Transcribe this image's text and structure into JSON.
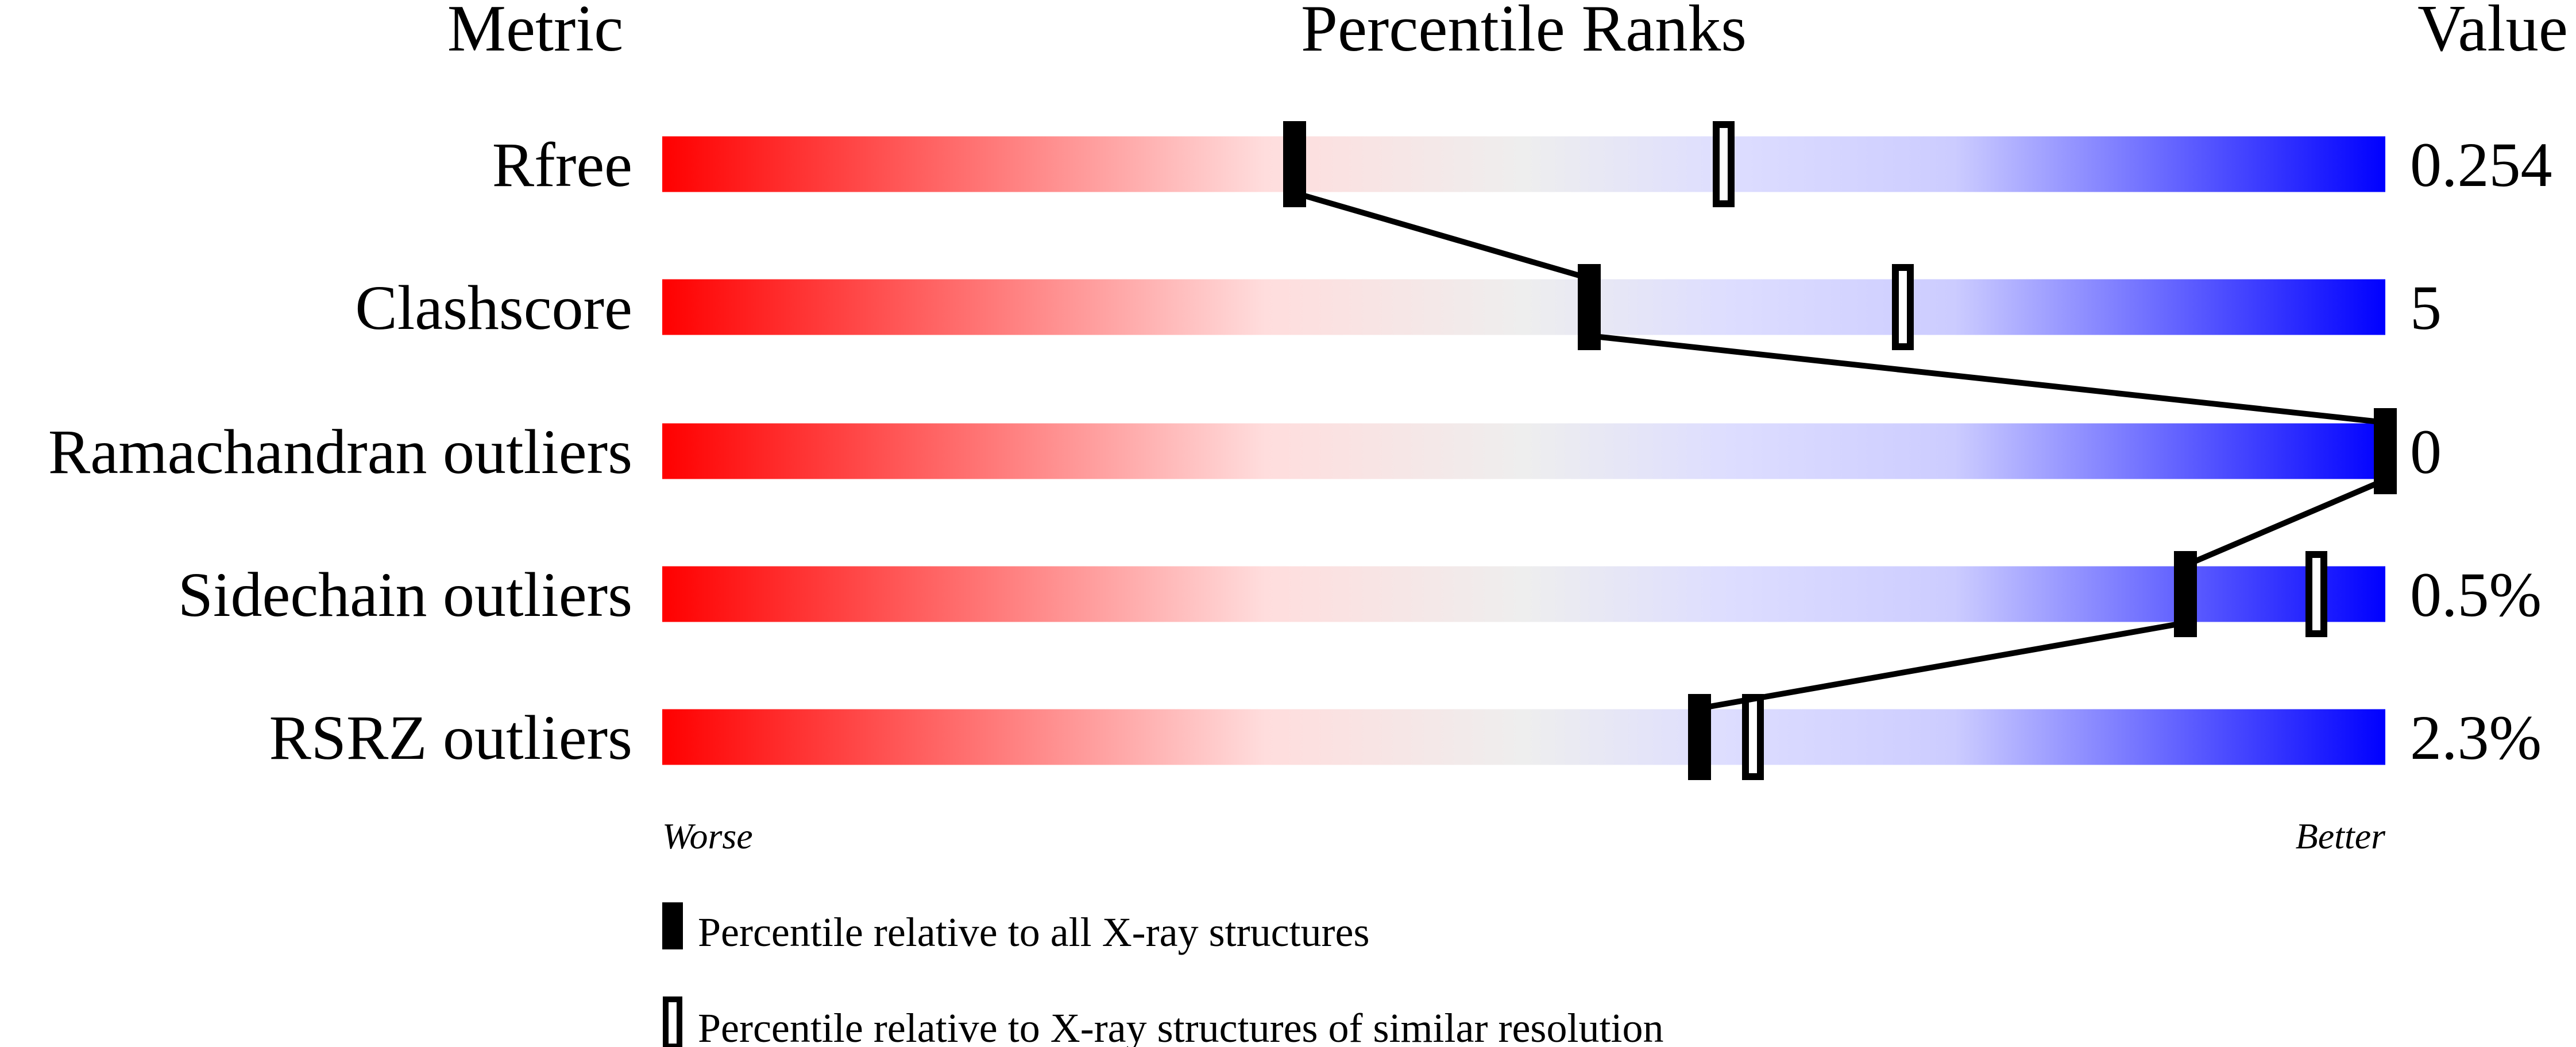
{
  "headers": {
    "metric": "Metric",
    "percentile": "Percentile Ranks",
    "value": "Value"
  },
  "axis": {
    "worse": "Worse",
    "better": "Better"
  },
  "legend": {
    "all": "Percentile relative to all X-ray structures",
    "similar": "Percentile relative to X-ray structures of similar resolution"
  },
  "colors": {
    "worst": "#ff0000",
    "mid": "#eeeeee",
    "best": "#0000ff",
    "marker": "#000000"
  },
  "chart_data": {
    "type": "bar",
    "xlim": [
      0,
      100
    ],
    "categories": [
      "Rfree",
      "Clashscore",
      "Ramachandran outliers",
      "Sidechain outliers",
      "RSRZ outliers"
    ],
    "values_text": [
      "0.254",
      "5",
      "0",
      "0.5%",
      "2.3%"
    ],
    "series": [
      {
        "name": "Percentile relative to all X-ray structures",
        "values": [
          36.7,
          53.8,
          100,
          88.4,
          60.2
        ]
      },
      {
        "name": "Percentile relative to X-ray structures of similar resolution",
        "values": [
          61.6,
          72.0,
          null,
          96.0,
          63.3
        ]
      }
    ]
  }
}
